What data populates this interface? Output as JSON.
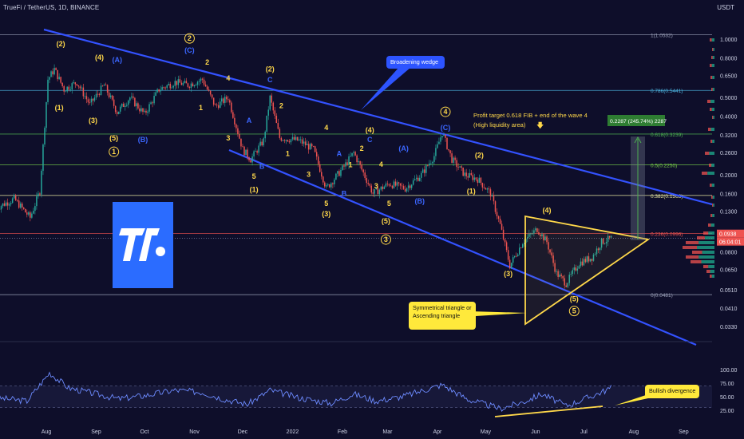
{
  "header": {
    "symbol_line": "TrueFi / TetherUS, 1D, BINANCE",
    "currency": "USDT"
  },
  "colors": {
    "background": "#0e0e2a",
    "up": "#26a69a",
    "down": "#ef5350",
    "wedge": "#3352ff",
    "triangle": "#ffd84a",
    "wave_yellow": "#ffd84a",
    "wave_blue": "#3b66ff",
    "rsi": "#6d8bff"
  },
  "chart_data": {
    "type": "candlestick",
    "scale": "log",
    "y_ticks": [
      "1.0000",
      "0.8000",
      "0.6500",
      "0.5000",
      "0.4000",
      "0.3200",
      "0.2600",
      "0.2000",
      "0.1600",
      "0.1300",
      "0.1000",
      "0.0800",
      "0.0650",
      "0.0510",
      "0.0410",
      "0.0330"
    ],
    "x_ticks": [
      "Aug",
      "Sep",
      "Oct",
      "Nov",
      "Dec",
      "2022",
      "Feb",
      "Mar",
      "Apr",
      "May",
      "Jun",
      "Jul",
      "Aug",
      "Sep"
    ],
    "current_price": "0.0938",
    "countdown": "06:04:01",
    "fib_levels": [
      {
        "label": "1(1.0532)",
        "value": 1.0532,
        "color": "#9aa0b8"
      },
      {
        "label": "0.786(0.5441)",
        "value": 0.5441,
        "color": "#4db6e2"
      },
      {
        "label": "0.618(0.3239)",
        "value": 0.3239,
        "color": "#4caf50"
      },
      {
        "label": "0.5(0.2250)",
        "value": 0.225,
        "color": "#7bd14a"
      },
      {
        "label": "0.382(0.1563)",
        "value": 0.1563,
        "color": "#e6e6a0"
      },
      {
        "label": "0.236(0.0996)",
        "value": 0.0996,
        "color": "#ef5350"
      },
      {
        "label": "0(0.0481)",
        "value": 0.0481,
        "color": "#9aa0b8"
      }
    ],
    "price_path": [
      {
        "t": "2021-07-01",
        "p": 0.135
      },
      {
        "t": "2021-07-12",
        "p": 0.15
      },
      {
        "t": "2021-07-22",
        "p": 0.12
      },
      {
        "t": "2021-07-28",
        "p": 0.165
      },
      {
        "t": "2021-08-02",
        "p": 0.62
      },
      {
        "t": "2021-08-06",
        "p": 0.7
      },
      {
        "t": "2021-08-12",
        "p": 0.55
      },
      {
        "t": "2021-08-20",
        "p": 0.6
      },
      {
        "t": "2021-08-28",
        "p": 0.46
      },
      {
        "t": "2021-09-06",
        "p": 0.58
      },
      {
        "t": "2021-09-14",
        "p": 0.42
      },
      {
        "t": "2021-09-22",
        "p": 0.5
      },
      {
        "t": "2021-10-01",
        "p": 0.41
      },
      {
        "t": "2021-10-10",
        "p": 0.55
      },
      {
        "t": "2021-10-20",
        "p": 0.6
      },
      {
        "t": "2021-10-28",
        "p": 0.58
      },
      {
        "t": "2021-11-06",
        "p": 0.62
      },
      {
        "t": "2021-11-14",
        "p": 0.45
      },
      {
        "t": "2021-11-22",
        "p": 0.5
      },
      {
        "t": "2021-12-01",
        "p": 0.27
      },
      {
        "t": "2021-12-06",
        "p": 0.24
      },
      {
        "t": "2021-12-14",
        "p": 0.3
      },
      {
        "t": "2021-12-18",
        "p": 0.5
      },
      {
        "t": "2021-12-24",
        "p": 0.31
      },
      {
        "t": "2022-01-05",
        "p": 0.3
      },
      {
        "t": "2022-01-14",
        "p": 0.27
      },
      {
        "t": "2022-01-22",
        "p": 0.17
      },
      {
        "t": "2022-02-02",
        "p": 0.22
      },
      {
        "t": "2022-02-08",
        "p": 0.26
      },
      {
        "t": "2022-02-20",
        "p": 0.16
      },
      {
        "t": "2022-03-02",
        "p": 0.18
      },
      {
        "t": "2022-03-12",
        "p": 0.17
      },
      {
        "t": "2022-03-22",
        "p": 0.2
      },
      {
        "t": "2022-03-30",
        "p": 0.25
      },
      {
        "t": "2022-04-04",
        "p": 0.33
      },
      {
        "t": "2022-04-10",
        "p": 0.24
      },
      {
        "t": "2022-04-18",
        "p": 0.2
      },
      {
        "t": "2022-04-26",
        "p": 0.19
      },
      {
        "t": "2022-05-04",
        "p": 0.16
      },
      {
        "t": "2022-05-10",
        "p": 0.11
      },
      {
        "t": "2022-05-16",
        "p": 0.068
      },
      {
        "t": "2022-05-24",
        "p": 0.09
      },
      {
        "t": "2022-06-02",
        "p": 0.105
      },
      {
        "t": "2022-06-08",
        "p": 0.09
      },
      {
        "t": "2022-06-14",
        "p": 0.062
      },
      {
        "t": "2022-06-20",
        "p": 0.055
      },
      {
        "t": "2022-06-28",
        "p": 0.07
      },
      {
        "t": "2022-07-06",
        "p": 0.075
      },
      {
        "t": "2022-07-12",
        "p": 0.09
      },
      {
        "t": "2022-07-18",
        "p": 0.0938
      }
    ],
    "rsi": {
      "y_ticks": [
        "100.00",
        "75.00",
        "50.00",
        "25.00"
      ],
      "values": [
        {
          "t": "2021-07-01",
          "v": 48
        },
        {
          "t": "2021-07-20",
          "v": 42
        },
        {
          "t": "2021-08-03",
          "v": 94
        },
        {
          "t": "2021-08-15",
          "v": 66
        },
        {
          "t": "2021-09-01",
          "v": 55
        },
        {
          "t": "2021-09-15",
          "v": 46
        },
        {
          "t": "2021-10-01",
          "v": 52
        },
        {
          "t": "2021-10-20",
          "v": 62
        },
        {
          "t": "2021-11-06",
          "v": 58
        },
        {
          "t": "2021-11-20",
          "v": 45
        },
        {
          "t": "2021-12-04",
          "v": 36
        },
        {
          "t": "2021-12-18",
          "v": 62
        },
        {
          "t": "2022-01-05",
          "v": 48
        },
        {
          "t": "2022-01-25",
          "v": 38
        },
        {
          "t": "2022-02-08",
          "v": 55
        },
        {
          "t": "2022-02-22",
          "v": 42
        },
        {
          "t": "2022-03-10",
          "v": 50
        },
        {
          "t": "2022-04-04",
          "v": 72
        },
        {
          "t": "2022-04-20",
          "v": 45
        },
        {
          "t": "2022-05-10",
          "v": 28
        },
        {
          "t": "2022-05-24",
          "v": 40
        },
        {
          "t": "2022-06-05",
          "v": 55
        },
        {
          "t": "2022-06-20",
          "v": 33
        },
        {
          "t": "2022-07-05",
          "v": 50
        },
        {
          "t": "2022-07-18",
          "v": 66
        }
      ]
    }
  },
  "wave_labels": [
    {
      "text": "(2)",
      "t": "2021-08-10",
      "p": 0.92,
      "c": "y"
    },
    {
      "text": "(4)",
      "t": "2021-09-03",
      "p": 0.78,
      "c": "y"
    },
    {
      "text": "(A)",
      "t": "2021-09-14",
      "p": 0.76,
      "c": "b"
    },
    {
      "text": "(1)",
      "t": "2021-08-09",
      "p": 0.43,
      "c": "y"
    },
    {
      "text": "(3)",
      "t": "2021-08-30",
      "p": 0.37,
      "c": "y"
    },
    {
      "text": "(5)",
      "t": "2021-09-12",
      "p": 0.3,
      "c": "y"
    },
    {
      "text": "1",
      "t": "2021-09-12",
      "p": 0.255,
      "c": "y",
      "circle": true
    },
    {
      "text": "(B)",
      "t": "2021-09-30",
      "p": 0.295,
      "c": "b"
    },
    {
      "text": "2",
      "t": "2021-10-29",
      "p": 0.98,
      "c": "y",
      "circle": true
    },
    {
      "text": "(C)",
      "t": "2021-10-29",
      "p": 0.85,
      "c": "b"
    },
    {
      "text": "2",
      "t": "2021-11-09",
      "p": 0.74,
      "c": "y"
    },
    {
      "text": "4",
      "t": "2021-11-22",
      "p": 0.61,
      "c": "y"
    },
    {
      "text": "1",
      "t": "2021-11-05",
      "p": 0.43,
      "c": "y"
    },
    {
      "text": "3",
      "t": "2021-11-22",
      "p": 0.3,
      "c": "y"
    },
    {
      "text": "A",
      "t": "2021-12-05",
      "p": 0.37,
      "c": "b"
    },
    {
      "text": "5",
      "t": "2021-12-08",
      "p": 0.19,
      "c": "y"
    },
    {
      "text": "(1)",
      "t": "2021-12-08",
      "p": 0.163,
      "c": "y"
    },
    {
      "text": "B",
      "t": "2021-12-13",
      "p": 0.214,
      "c": "b"
    },
    {
      "text": "(2)",
      "t": "2021-12-18",
      "p": 0.68,
      "c": "y"
    },
    {
      "text": "C",
      "t": "2021-12-18",
      "p": 0.6,
      "c": "b"
    },
    {
      "text": "2",
      "t": "2021-12-25",
      "p": 0.44,
      "c": "y"
    },
    {
      "text": "1",
      "t": "2021-12-29",
      "p": 0.25,
      "c": "y"
    },
    {
      "text": "3",
      "t": "2022-01-11",
      "p": 0.195,
      "c": "y"
    },
    {
      "text": "4",
      "t": "2022-01-22",
      "p": 0.34,
      "c": "y"
    },
    {
      "text": "A",
      "t": "2022-01-30",
      "p": 0.25,
      "c": "b"
    },
    {
      "text": "5",
      "t": "2022-01-22",
      "p": 0.138,
      "c": "y"
    },
    {
      "text": "(3)",
      "t": "2022-01-22",
      "p": 0.122,
      "c": "y"
    },
    {
      "text": "B",
      "t": "2022-02-02",
      "p": 0.155,
      "c": "b"
    },
    {
      "text": "1",
      "t": "2022-02-06",
      "p": 0.218,
      "c": "y"
    },
    {
      "text": "2",
      "t": "2022-02-13",
      "p": 0.265,
      "c": "y"
    },
    {
      "text": "(4)",
      "t": "2022-02-18",
      "p": 0.33,
      "c": "y"
    },
    {
      "text": "C",
      "t": "2022-02-18",
      "p": 0.295,
      "c": "b"
    },
    {
      "text": "4",
      "t": "2022-02-25",
      "p": 0.22,
      "c": "y"
    },
    {
      "text": "3",
      "t": "2022-02-22",
      "p": 0.17,
      "c": "y"
    },
    {
      "text": "5",
      "t": "2022-03-02",
      "p": 0.138,
      "c": "y"
    },
    {
      "text": "(5)",
      "t": "2022-02-28",
      "p": 0.112,
      "c": "y"
    },
    {
      "text": "3",
      "t": "2022-02-28",
      "p": 0.09,
      "c": "y",
      "circle": true
    },
    {
      "text": "(A)",
      "t": "2022-03-11",
      "p": 0.265,
      "c": "b"
    },
    {
      "text": "(B)",
      "t": "2022-03-21",
      "p": 0.142,
      "c": "b"
    },
    {
      "text": "4",
      "t": "2022-04-06",
      "p": 0.41,
      "c": "y",
      "circle": true
    },
    {
      "text": "(C)",
      "t": "2022-04-06",
      "p": 0.34,
      "c": "b"
    },
    {
      "text": "(2)",
      "t": "2022-04-27",
      "p": 0.245,
      "c": "y"
    },
    {
      "text": "(1)",
      "t": "2022-04-22",
      "p": 0.16,
      "c": "y"
    },
    {
      "text": "(3)",
      "t": "2022-05-15",
      "p": 0.06,
      "c": "y"
    },
    {
      "text": "(4)",
      "t": "2022-06-08",
      "p": 0.127,
      "c": "y"
    },
    {
      "text": "(5)",
      "t": "2022-06-25",
      "p": 0.0445,
      "c": "y"
    },
    {
      "text": "5",
      "t": "2022-06-25",
      "p": 0.0385,
      "c": "y",
      "circle": true
    }
  ],
  "annotations": {
    "broadening_wedge": "Broadening wedge",
    "profit_target_line1": "Profit target 0.618 FIB + end of the wave 4",
    "profit_target_line2": "(High liquidity area)",
    "profit_target_arrow": "🡇",
    "measure_label": "0.2287 (245.74%) 2287",
    "triangle_line1": "Symmetrical triangle or",
    "triangle_line2": "Ascending triangle",
    "bullish_divergence": "Bullish divergence"
  },
  "logo_alt": "TrueFi"
}
